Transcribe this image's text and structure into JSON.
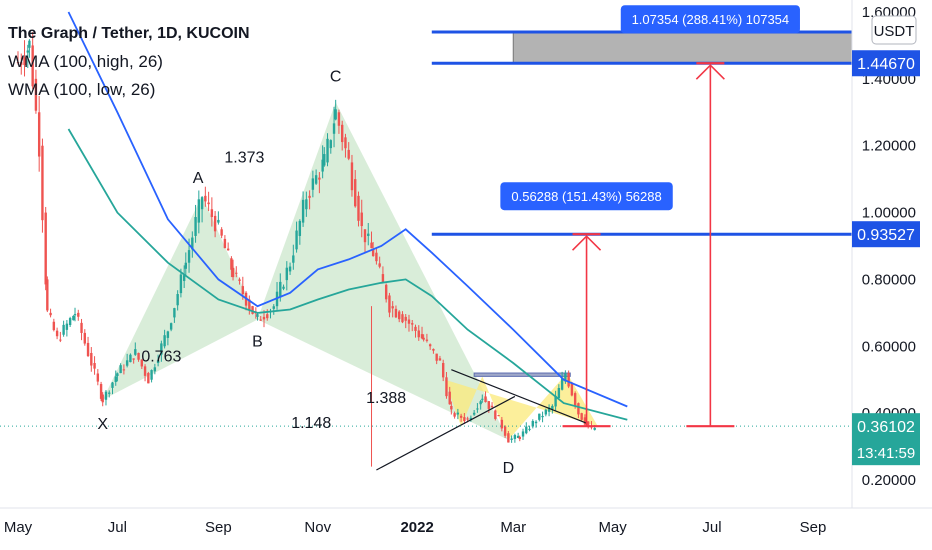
{
  "legend": {
    "title": "The Graph / Tether, 1D, KUCOIN",
    "wma_high": "WMA (100, high, 26)",
    "wma_low": "WMA (100, low, 26)"
  },
  "currency_button": "USDT",
  "colors": {
    "up": "#26a69a",
    "down": "#ef5350",
    "wma_high": "#2962ff",
    "wma_low": "#26a69a",
    "pattern_green": "#b9dfb9",
    "pattern_yellow": "#fbe97a",
    "target_line": "#1e53e5",
    "arrow": "#f23645",
    "current_price": "#26a69a"
  },
  "chart_data": {
    "type": "candlestick",
    "y_axis": {
      "min": 0.15,
      "max": 1.6,
      "ticks": [
        {
          "value": 1.6,
          "label": "1.60000"
        },
        {
          "value": 1.4,
          "label": "1.40000"
        },
        {
          "value": 1.2,
          "label": "1.20000"
        },
        {
          "value": 1.0,
          "label": "1.00000"
        },
        {
          "value": 0.8,
          "label": "0.80000"
        },
        {
          "value": 0.6,
          "label": "0.60000"
        },
        {
          "value": 0.4,
          "label": "0.40000"
        },
        {
          "value": 0.2,
          "label": "0.20000"
        }
      ]
    },
    "x_axis": {
      "ticks": [
        {
          "label": "May",
          "date": "2021-05-01",
          "bold": false
        },
        {
          "label": "Jul",
          "date": "2021-07-01",
          "bold": false
        },
        {
          "label": "Sep",
          "date": "2021-09-01",
          "bold": false
        },
        {
          "label": "Nov",
          "date": "2021-11-01",
          "bold": false
        },
        {
          "label": "2022",
          "date": "2022-01-01",
          "bold": true
        },
        {
          "label": "Mar",
          "date": "2022-03-01",
          "bold": false
        },
        {
          "label": "May",
          "date": "2022-05-01",
          "bold": false
        },
        {
          "label": "Jul",
          "date": "2022-07-01",
          "bold": false
        },
        {
          "label": "Sep",
          "date": "2022-09-01",
          "bold": false
        }
      ]
    },
    "price_path": [
      [
        "2021-05-01",
        1.45
      ],
      [
        "2021-05-08",
        1.5
      ],
      [
        "2021-05-14",
        1.2
      ],
      [
        "2021-05-19",
        0.7
      ],
      [
        "2021-05-25",
        0.62
      ],
      [
        "2021-06-05",
        0.7
      ],
      [
        "2021-06-15",
        0.55
      ],
      [
        "2021-06-22",
        0.44
      ],
      [
        "2021-07-01",
        0.52
      ],
      [
        "2021-07-12",
        0.58
      ],
      [
        "2021-07-20",
        0.5
      ],
      [
        "2021-08-01",
        0.65
      ],
      [
        "2021-08-12",
        0.85
      ],
      [
        "2021-08-22",
        1.05
      ],
      [
        "2021-09-01",
        0.95
      ],
      [
        "2021-09-10",
        0.82
      ],
      [
        "2021-09-20",
        0.72
      ],
      [
        "2021-09-25",
        0.68
      ],
      [
        "2021-10-05",
        0.72
      ],
      [
        "2021-10-15",
        0.85
      ],
      [
        "2021-10-25",
        1.05
      ],
      [
        "2021-11-05",
        1.15
      ],
      [
        "2021-11-12",
        1.3
      ],
      [
        "2021-11-20",
        1.15
      ],
      [
        "2021-11-28",
        0.95
      ],
      [
        "2021-12-05",
        0.88
      ],
      [
        "2021-12-15",
        0.72
      ],
      [
        "2021-12-25",
        0.68
      ],
      [
        "2022-01-05",
        0.62
      ],
      [
        "2022-01-15",
        0.55
      ],
      [
        "2022-01-22",
        0.4
      ],
      [
        "2022-02-01",
        0.38
      ],
      [
        "2022-02-10",
        0.45
      ],
      [
        "2022-02-20",
        0.38
      ],
      [
        "2022-02-26",
        0.32
      ],
      [
        "2022-03-05",
        0.33
      ],
      [
        "2022-03-15",
        0.38
      ],
      [
        "2022-03-25",
        0.42
      ],
      [
        "2022-04-02",
        0.52
      ],
      [
        "2022-04-10",
        0.4
      ],
      [
        "2022-04-18",
        0.35
      ],
      [
        "2022-04-22",
        0.361
      ]
    ],
    "spike_low": {
      "date": "2021-12-04",
      "value": 0.24
    },
    "wma_high_path": [
      [
        "2021-06-01",
        1.6
      ],
      [
        "2021-07-01",
        1.3
      ],
      [
        "2021-08-01",
        0.98
      ],
      [
        "2021-09-01",
        0.8
      ],
      [
        "2021-09-25",
        0.72
      ],
      [
        "2021-10-15",
        0.76
      ],
      [
        "2021-11-01",
        0.83
      ],
      [
        "2021-11-20",
        0.86
      ],
      [
        "2021-12-10",
        0.9
      ],
      [
        "2021-12-25",
        0.95
      ],
      [
        "2022-01-10",
        0.88
      ],
      [
        "2022-02-01",
        0.78
      ],
      [
        "2022-03-01",
        0.65
      ],
      [
        "2022-04-01",
        0.5
      ],
      [
        "2022-05-10",
        0.42
      ]
    ],
    "wma_low_path": [
      [
        "2021-06-01",
        1.25
      ],
      [
        "2021-07-01",
        1.0
      ],
      [
        "2021-08-01",
        0.85
      ],
      [
        "2021-09-01",
        0.74
      ],
      [
        "2021-09-25",
        0.7
      ],
      [
        "2021-10-15",
        0.71
      ],
      [
        "2021-11-01",
        0.74
      ],
      [
        "2021-11-20",
        0.77
      ],
      [
        "2021-12-10",
        0.79
      ],
      [
        "2021-12-25",
        0.8
      ],
      [
        "2022-01-10",
        0.75
      ],
      [
        "2022-02-01",
        0.65
      ],
      [
        "2022-03-01",
        0.55
      ],
      [
        "2022-04-01",
        0.43
      ],
      [
        "2022-05-10",
        0.38
      ]
    ],
    "harmonic_pattern": {
      "points": [
        {
          "name": "X",
          "date": "2021-06-22",
          "value": 0.44
        },
        {
          "name": "A",
          "date": "2021-08-22",
          "value": 1.05
        },
        {
          "name": "B",
          "date": "2021-09-25",
          "value": 0.68
        },
        {
          "name": "C",
          "date": "2021-11-12",
          "value": 1.33
        },
        {
          "name": "D",
          "date": "2022-02-26",
          "value": 0.32
        }
      ],
      "ratios": [
        {
          "label": "0.763",
          "date": "2021-07-28",
          "value": 0.555
        },
        {
          "label": "1.373",
          "date": "2021-09-17",
          "value": 1.15
        },
        {
          "label": "1.388",
          "date": "2021-12-13",
          "value": 0.43
        },
        {
          "label": "1.148",
          "date": "2021-10-28",
          "value": 0.355
        }
      ]
    },
    "head_and_shoulders": {
      "points": [
        [
          "2022-01-18",
          0.5
        ],
        [
          "2022-01-28",
          0.36
        ],
        [
          "2022-02-10",
          0.51
        ],
        [
          "2022-02-26",
          0.32
        ],
        [
          "2022-04-03",
          0.52
        ],
        [
          "2022-04-22",
          0.36
        ]
      ],
      "neckline_rect": {
        "date_start": "2022-02-05",
        "date_end": "2022-04-05",
        "value_top": 0.52,
        "value_bottom": 0.51
      }
    },
    "trendlines": [
      {
        "from": [
          "2021-12-07",
          0.23
        ],
        "to": [
          "2022-03-02",
          0.45
        ]
      },
      {
        "from": [
          "2022-01-22",
          0.53
        ],
        "to": [
          "2022-04-15",
          0.37
        ]
      }
    ],
    "targets": [
      {
        "level": 0.93527,
        "price_label": "0.93527",
        "measure_label": "0.56288 (151.43%) 56288",
        "date_start": "2022-01-10",
        "date_end": "2022-09-30",
        "arrow_date": "2022-04-15",
        "arrow_base": 0.36102
      },
      {
        "level": 1.4467,
        "price_label": "1.44670",
        "measure_label": "1.07354 (288.41%) 107354",
        "date_start": "2022-01-10",
        "date_end": "2022-09-30",
        "arrow_date": "2022-06-30",
        "arrow_base": 0.36102,
        "band_top": 1.54,
        "band_date_start": "2022-03-01"
      }
    ],
    "current_price": {
      "value": 0.36102,
      "label": "0.36102",
      "countdown": "13:41:59"
    },
    "grid": false
  }
}
